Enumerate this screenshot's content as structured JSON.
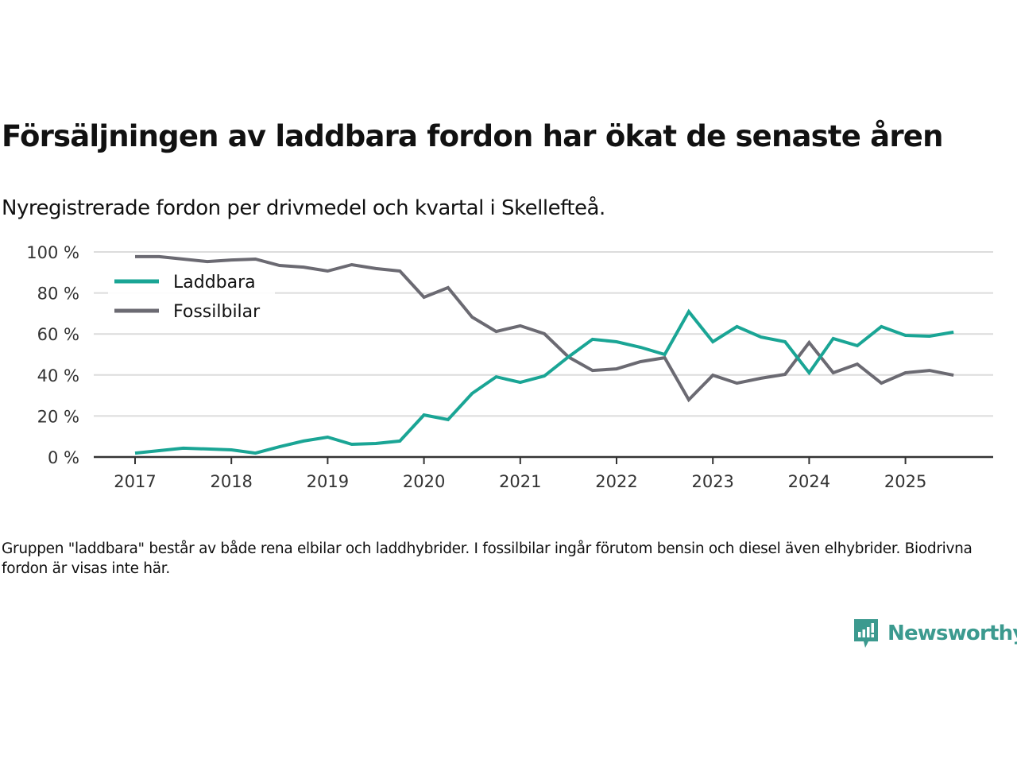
{
  "title": "Försäljningen av laddbara fordon har ökat de senaste åren",
  "subtitle": "Nyregistrerade fordon per drivmedel och kvartal i Skellefteå.",
  "note": "Gruppen \"laddbara\" består av både rena elbilar och laddhybrider. I fossilbilar ingår förutom bensin och diesel även elhybrider. Biodrivna fordon är visas inte här.",
  "logo": {
    "text": "Newsworthy",
    "icon": "bar-chart-speech-bubble-icon",
    "color": "#3c9a8f"
  },
  "colors": {
    "laddbara": "#1aa595",
    "fossilbilar": "#6b6a72",
    "grid": "#dcdcdc",
    "axis": "#333333"
  },
  "chart_data": {
    "type": "line",
    "title": "Försäljningen av laddbara fordon har ökat de senaste åren",
    "subtitle": "Nyregistrerade fordon per drivmedel och kvartal i Skellefteå.",
    "xlabel": "",
    "ylabel": "",
    "ylim": [
      0,
      100
    ],
    "y_ticks": [
      0,
      20,
      40,
      60,
      80,
      100
    ],
    "y_tick_labels": [
      "0 %",
      "20 %",
      "40 %",
      "60 %",
      "80 %",
      "100 %"
    ],
    "x_tick_labels": [
      "2017",
      "2018",
      "2019",
      "2020",
      "2021",
      "2022",
      "2023",
      "2024",
      "2025"
    ],
    "grid": true,
    "legend_position": "top-left",
    "x": [
      "2017Q1",
      "2017Q2",
      "2017Q3",
      "2017Q4",
      "2018Q1",
      "2018Q2",
      "2018Q3",
      "2018Q4",
      "2019Q1",
      "2019Q2",
      "2019Q3",
      "2019Q4",
      "2020Q1",
      "2020Q2",
      "2020Q3",
      "2020Q4",
      "2021Q1",
      "2021Q2",
      "2021Q3",
      "2021Q4",
      "2022Q1",
      "2022Q2",
      "2022Q3",
      "2022Q4",
      "2023Q1",
      "2023Q2",
      "2023Q3",
      "2023Q4",
      "2024Q1",
      "2024Q2",
      "2024Q3",
      "2024Q4",
      "2025Q1",
      "2025Q2",
      "2025Q3"
    ],
    "series": [
      {
        "name": "Laddbara",
        "color": "#1aa595",
        "values": [
          1.9,
          3.1,
          4.3,
          3.9,
          3.5,
          1.9,
          5.0,
          7.8,
          9.7,
          6.2,
          6.6,
          7.8,
          20.5,
          18.2,
          31.0,
          39.1,
          36.4,
          39.5,
          48.8,
          57.4,
          56.2,
          53.5,
          50.0,
          70.9,
          56.2,
          63.6,
          58.5,
          56.2,
          41.1,
          57.8,
          54.3,
          63.6,
          59.3,
          58.9,
          60.9
        ]
      },
      {
        "name": "Fossilbilar",
        "color": "#6b6a72",
        "values": [
          97.7,
          97.7,
          96.5,
          95.3,
          96.1,
          96.5,
          93.4,
          92.6,
          90.7,
          93.8,
          91.9,
          90.7,
          77.9,
          82.6,
          68.2,
          61.2,
          64.0,
          60.1,
          48.8,
          42.2,
          43.0,
          46.5,
          48.4,
          27.9,
          39.9,
          36.0,
          38.4,
          40.3,
          55.8,
          41.1,
          45.3,
          36.0,
          41.1,
          42.2,
          39.9
        ]
      }
    ]
  }
}
